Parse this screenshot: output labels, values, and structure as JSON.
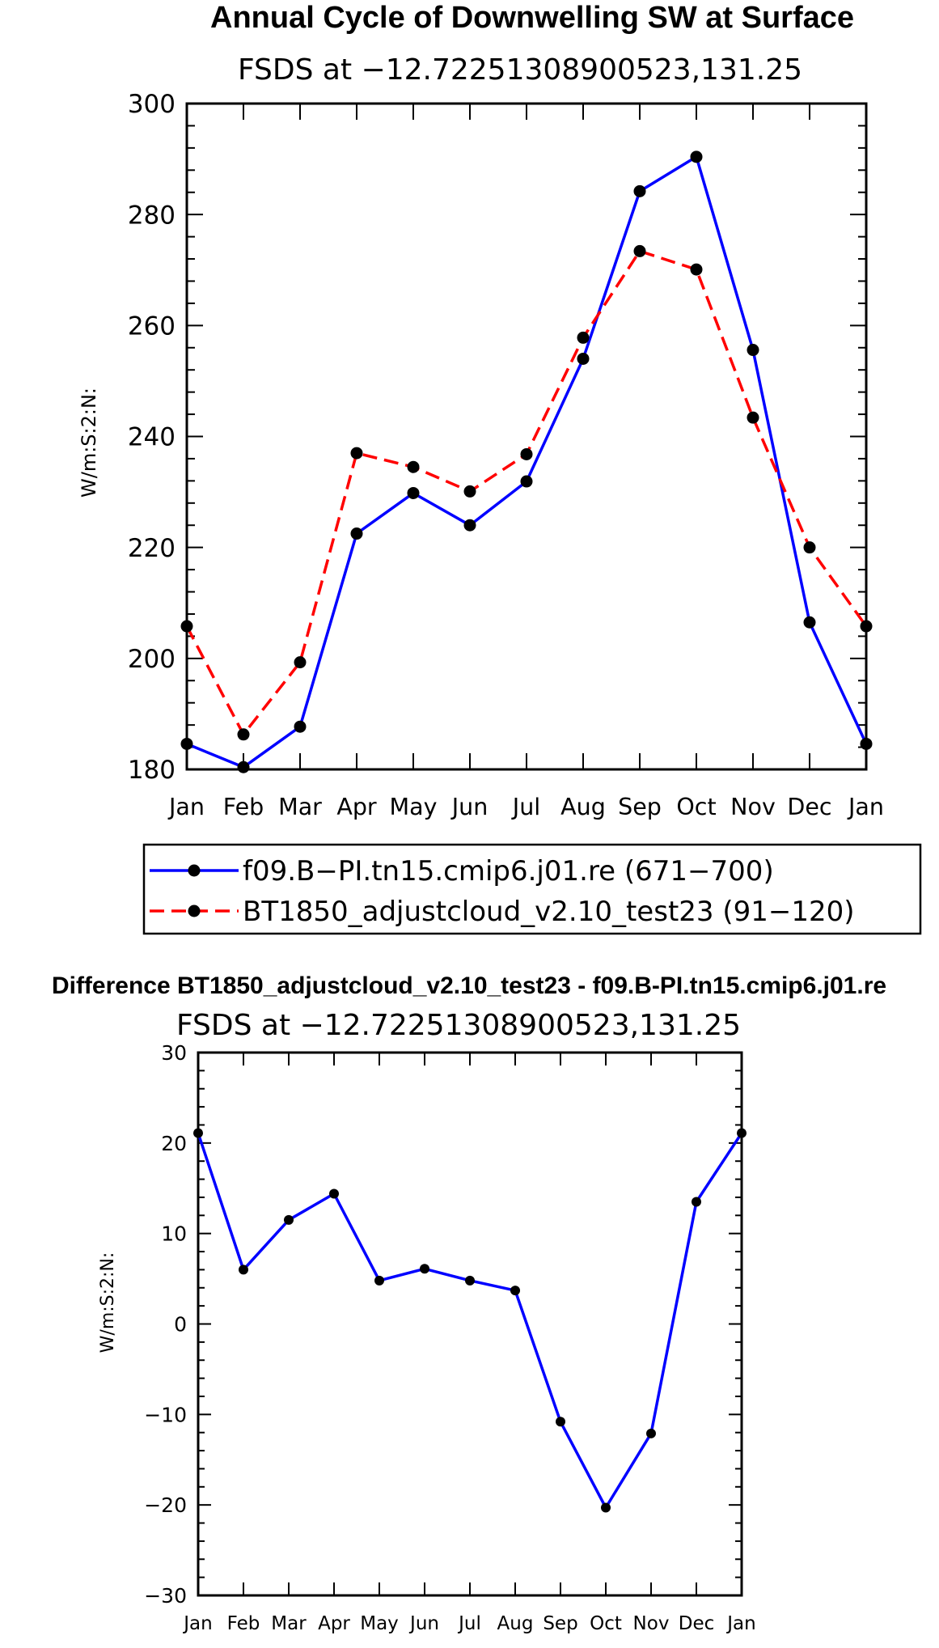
{
  "chart_data": [
    {
      "type": "line",
      "title": "Annual Cycle of Downwelling SW at Surface",
      "subtitle": "FSDS at −12.72251308900523,131.25",
      "ylabel": "W/m:S:2:N:",
      "ylim": [
        180,
        300
      ],
      "yticks": [
        180,
        200,
        220,
        240,
        260,
        280,
        300
      ],
      "yticklabels": [
        "180",
        "200",
        "220",
        "240",
        "260",
        "280",
        "300"
      ],
      "categories": [
        "Jan",
        "Feb",
        "Mar",
        "Apr",
        "May",
        "Jun",
        "Jul",
        "Aug",
        "Sep",
        "Oct",
        "Nov",
        "Dec",
        "Jan"
      ],
      "series": [
        {
          "name": "f09.B−PI.tn15.cmip6.j01.re (671−700)",
          "color": "#0000ff",
          "dash": "solid",
          "values": [
            184.6,
            180.4,
            187.7,
            222.5,
            229.8,
            224.0,
            231.9,
            254.0,
            284.2,
            290.4,
            255.6,
            206.5,
            184.6
          ]
        },
        {
          "name": "BT1850_adjustcloud_v2.10_test23 (91−120)",
          "color": "#ff0000",
          "dash": "dashed",
          "values": [
            205.8,
            186.3,
            199.3,
            237.0,
            234.5,
            230.1,
            236.8,
            257.8,
            273.4,
            270.1,
            243.4,
            220.0,
            205.8
          ]
        }
      ]
    },
    {
      "type": "line",
      "title": "Difference BT1850_adjustcloud_v2.10_test23 - f09.B-PI.tn15.cmip6.j01.re",
      "subtitle": "FSDS at −12.72251308900523,131.25",
      "ylabel": "W/m:S:2:N:",
      "ylim": [
        -30,
        30
      ],
      "yticks": [
        -30,
        -20,
        -10,
        0,
        10,
        20,
        30
      ],
      "yticklabels": [
        "−30",
        "−20",
        "−10",
        "0",
        "10",
        "20",
        "30"
      ],
      "categories": [
        "Jan",
        "Feb",
        "Mar",
        "Apr",
        "May",
        "Jun",
        "Jul",
        "Aug",
        "Sep",
        "Oct",
        "Nov",
        "Dec",
        "Jan"
      ],
      "series": [
        {
          "name": "Difference",
          "color": "#0000ff",
          "dash": "solid",
          "values": [
            21.1,
            6.0,
            11.5,
            14.4,
            4.8,
            6.1,
            4.8,
            3.7,
            -10.8,
            -20.3,
            -12.1,
            13.5,
            21.1
          ]
        }
      ]
    }
  ]
}
